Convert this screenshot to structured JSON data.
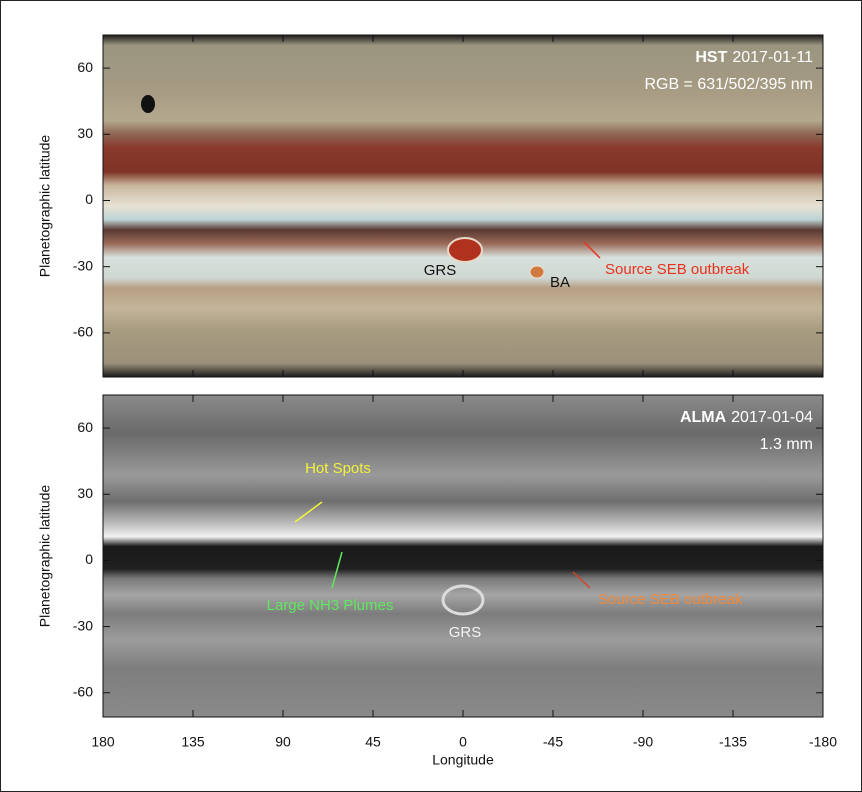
{
  "chart_data": [
    {
      "type": "image",
      "instrument": "HST",
      "date": "2017-01-11",
      "note": "RGB = 631/502/395 nm",
      "ylabel": "Planetographic latitude",
      "ylim": [
        75,
        -80
      ],
      "yticks": [
        60,
        30,
        0,
        -30,
        -60
      ],
      "xlim": [
        180,
        -180
      ],
      "annotations": [
        {
          "text": "GRS",
          "color": "#111111"
        },
        {
          "text": "BA",
          "color": "#111111"
        },
        {
          "text": "Source SEB outbreak",
          "color": "#e8321e"
        }
      ]
    },
    {
      "type": "image",
      "instrument": "ALMA",
      "date": "2017-01-04",
      "note": "1.3 mm",
      "ylabel": "Planetographic latitude",
      "ylim": [
        75,
        -71
      ],
      "yticks": [
        60,
        30,
        0,
        -30,
        -60
      ],
      "xlim": [
        180,
        -180
      ],
      "xticks": [
        180,
        135,
        90,
        45,
        0,
        -45,
        -90,
        -135,
        -180
      ],
      "xlabel": "Longitude",
      "annotations": [
        {
          "text": "Hot Spots",
          "color": "#f2f23c"
        },
        {
          "text": "Large NH3 Plumes",
          "color": "#5fe85f"
        },
        {
          "text": "GRS",
          "color": "#f4f4f4"
        },
        {
          "text": "Source SEB outbreak",
          "color": "#f08a3a"
        }
      ]
    }
  ]
}
